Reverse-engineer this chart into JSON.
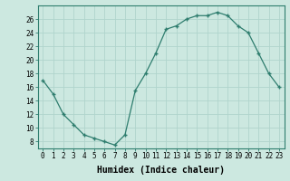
{
  "x": [
    0,
    1,
    2,
    3,
    4,
    5,
    6,
    7,
    8,
    9,
    10,
    11,
    12,
    13,
    14,
    15,
    16,
    17,
    18,
    19,
    20,
    21,
    22,
    23
  ],
  "y": [
    17,
    15,
    12,
    10.5,
    9,
    8.5,
    8,
    7.5,
    9,
    15.5,
    18,
    21,
    24.5,
    25,
    26,
    26.5,
    26.5,
    27,
    26.5,
    25,
    24,
    21,
    18,
    16
  ],
  "title": "",
  "xlabel": "Humidex (Indice chaleur)",
  "ylabel": "",
  "xlim": [
    -0.5,
    23.5
  ],
  "ylim": [
    7,
    28
  ],
  "yticks": [
    8,
    10,
    12,
    14,
    16,
    18,
    20,
    22,
    24,
    26
  ],
  "xticks": [
    0,
    1,
    2,
    3,
    4,
    5,
    6,
    7,
    8,
    9,
    10,
    11,
    12,
    13,
    14,
    15,
    16,
    17,
    18,
    19,
    20,
    21,
    22,
    23
  ],
  "line_color": "#2e7d6e",
  "marker": "+",
  "bg_color": "#cce8e0",
  "grid_color": "#b0d4cc",
  "label_fontsize": 7,
  "tick_fontsize": 5.5
}
